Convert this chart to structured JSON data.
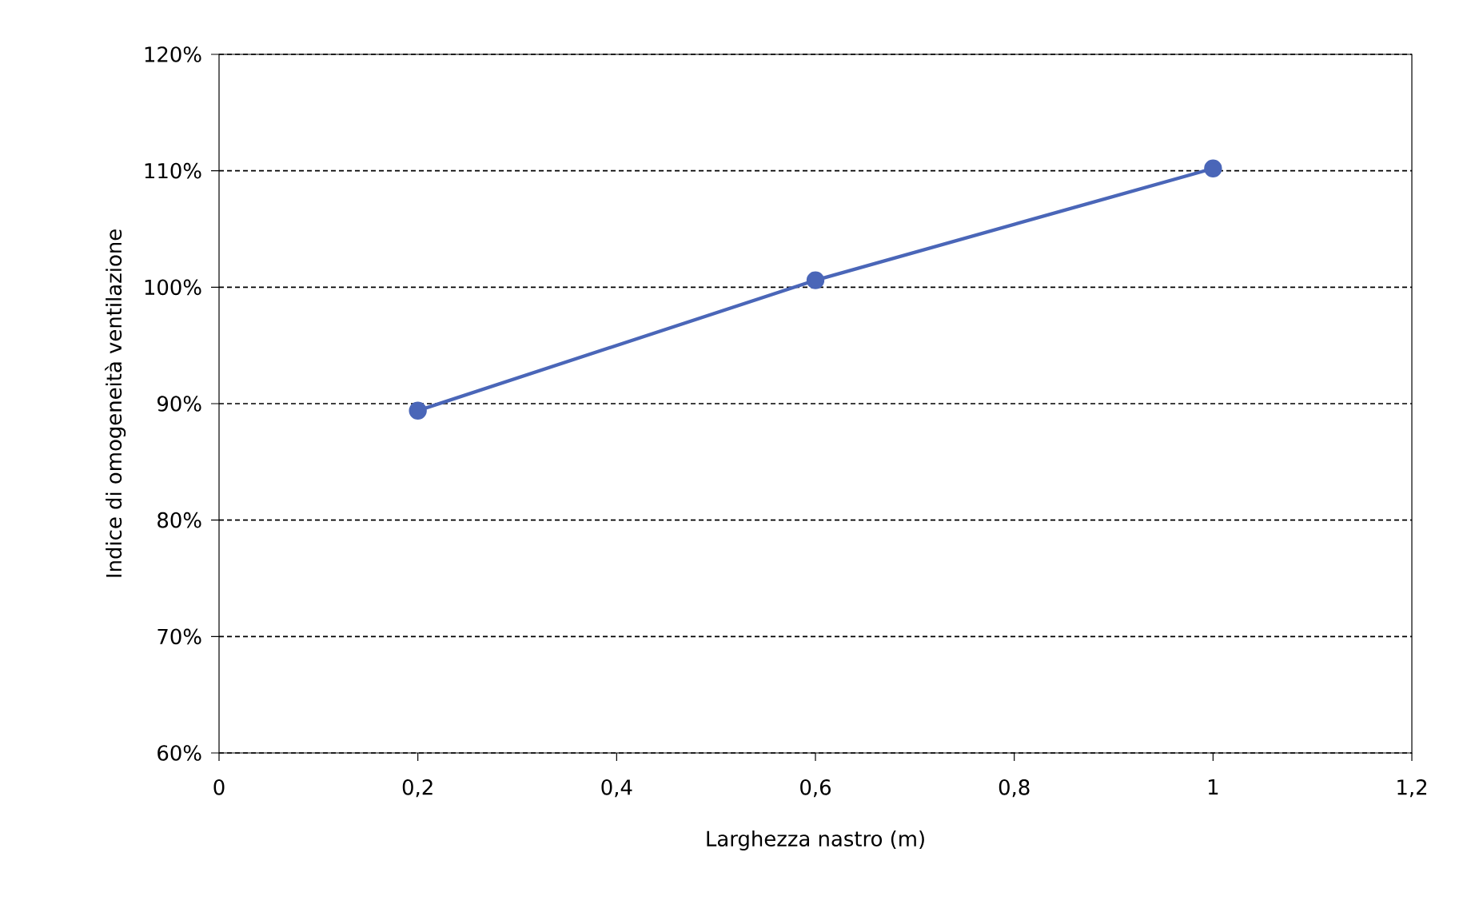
{
  "chart_data": {
    "type": "line",
    "xlabel": "Larghezza nastro (m)",
    "ylabel": "Indice di omogeneità ventilazione",
    "x": [
      0.2,
      0.6,
      1
    ],
    "series": [
      {
        "color": "#4a66b8",
        "values": [
          89.4,
          100.6,
          110.2
        ]
      }
    ],
    "xlim": [
      0,
      1.2
    ],
    "ylim": [
      60,
      120
    ],
    "xticks": [
      {
        "value": 0,
        "label": "0"
      },
      {
        "value": 0.2,
        "label": "0,2"
      },
      {
        "value": 0.4,
        "label": "0,4"
      },
      {
        "value": 0.6,
        "label": "0,6"
      },
      {
        "value": 0.8,
        "label": "0,8"
      },
      {
        "value": 1,
        "label": "1"
      },
      {
        "value": 1.2,
        "label": "1,2"
      }
    ],
    "yticks": [
      {
        "value": 60,
        "label": "60%"
      },
      {
        "value": 70,
        "label": "70%"
      },
      {
        "value": 80,
        "label": "80%"
      },
      {
        "value": 90,
        "label": "90%"
      },
      {
        "value": 100,
        "label": "100%"
      },
      {
        "value": 110,
        "label": "110%"
      },
      {
        "value": 120,
        "label": "120%"
      }
    ],
    "grid": "y",
    "marker": "circle",
    "line_style": "solid"
  }
}
